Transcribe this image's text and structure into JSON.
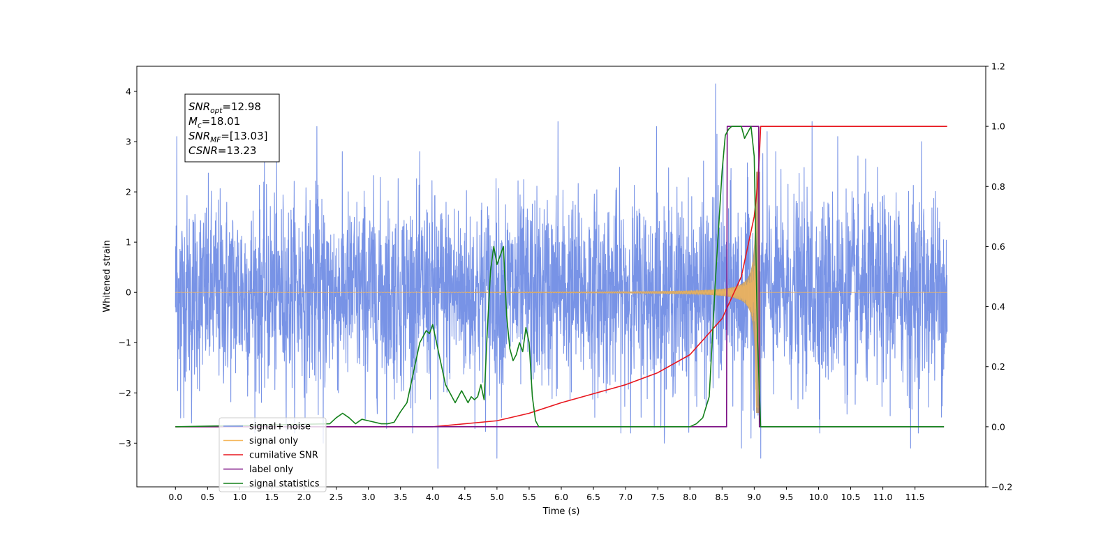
{
  "chart_data": {
    "type": "line",
    "title": "",
    "xlabel": "Time (s)",
    "ylabel": "Whitened strain",
    "xlim": [
      -0.6,
      12.6
    ],
    "ylim": [
      -3.87,
      4.5
    ],
    "y2lim": [
      -0.2,
      1.2
    ],
    "xticks": [
      0.0,
      0.5,
      1.0,
      1.5,
      2.0,
      2.5,
      3.0,
      3.5,
      4.0,
      4.5,
      5.0,
      5.5,
      6.0,
      6.5,
      7.0,
      7.5,
      8.0,
      8.5,
      9.0,
      9.5,
      10.0,
      10.5,
      11.0,
      11.5
    ],
    "xtick_labels": [
      "0.0",
      "0.5",
      "1.0",
      "1.5",
      "2.0",
      "2.5",
      "3.0",
      "3.5",
      "4.0",
      "4.5",
      "5.0",
      "5.5",
      "6.0",
      "6.5",
      "7.0",
      "7.5",
      "8.0",
      "8.5",
      "9.0",
      "9.5",
      "10.0",
      "10.5",
      "11.0",
      "11.5"
    ],
    "yticks": [
      -3,
      -2,
      -1,
      0,
      1,
      2,
      3,
      4
    ],
    "ytick_labels": [
      "−3",
      "−2",
      "−1",
      "0",
      "1",
      "2",
      "3",
      "4"
    ],
    "y2ticks": [
      -0.2,
      0.0,
      0.2,
      0.4,
      0.6,
      0.8,
      1.0,
      1.2
    ],
    "y2tick_labels": [
      "−0.2",
      "0.0",
      "0.2",
      "0.4",
      "0.6",
      "0.8",
      "1.0",
      "1.2"
    ],
    "grid": false,
    "legend_placement": "lower-left",
    "annotation": {
      "lines": [
        {
          "main": "SNR",
          "sub": "opt",
          "rest": "=12.98"
        },
        {
          "main": "M",
          "sub": "c",
          "rest": "=18.01"
        },
        {
          "main": "SNR",
          "sub": "MF",
          "rest": "=[13.03]"
        },
        {
          "main": "CSNR",
          "sub": "",
          "rest": "=13.23"
        }
      ]
    },
    "series": [
      {
        "name": "signal+ noise",
        "axis": "left",
        "color": "#7893e6",
        "kind": "noise",
        "duration": 12.0,
        "std": 0.95,
        "peaks": [
          [
            0.02,
            3.1
          ],
          [
            0.08,
            -2.5
          ],
          [
            0.25,
            -2.6
          ],
          [
            2.2,
            3.3
          ],
          [
            2.3,
            -3.0
          ],
          [
            4.08,
            -3.5
          ],
          [
            5.0,
            -3.3
          ],
          [
            5.95,
            3.4
          ],
          [
            7.48,
            3.3
          ],
          [
            7.6,
            -3.0
          ],
          [
            8.4,
            4.15
          ],
          [
            8.42,
            3.15
          ],
          [
            8.8,
            -3.1
          ],
          [
            8.95,
            -2.9
          ],
          [
            9.1,
            -3.3
          ],
          [
            9.2,
            3.2
          ],
          [
            9.9,
            3.4
          ],
          [
            10.3,
            3.1
          ],
          [
            11.43,
            -3.1
          ],
          [
            11.6,
            3.0
          ]
        ]
      },
      {
        "name": "signal only",
        "axis": "left",
        "color": "#f5b75c",
        "kind": "chirp",
        "merger_time": 9.05,
        "peak_amplitude": 2.4,
        "fill_color": "#b89c74"
      },
      {
        "name": "cumilative SNR",
        "axis": "right",
        "color": "#e8161e",
        "x": [
          0.0,
          4.0,
          5.0,
          5.5,
          6.0,
          6.5,
          7.0,
          7.5,
          8.0,
          8.5,
          8.8,
          9.0,
          9.05,
          9.08,
          9.1,
          12.0
        ],
        "y": [
          0.0,
          0.0,
          0.02,
          0.045,
          0.08,
          0.11,
          0.14,
          0.18,
          0.24,
          0.36,
          0.5,
          0.7,
          0.8,
          0.9,
          1.0,
          1.0
        ]
      },
      {
        "name": "label only",
        "axis": "right",
        "color": "#7d1085",
        "x": [
          0.0,
          8.57,
          8.58,
          9.07,
          9.08,
          11.95
        ],
        "y": [
          0.0,
          0.0,
          1.0,
          1.0,
          0.0,
          0.0
        ]
      },
      {
        "name": "signal statistics",
        "axis": "right",
        "color": "#13801a",
        "x": [
          0.0,
          2.4,
          2.5,
          2.6,
          2.7,
          2.8,
          2.9,
          3.0,
          3.1,
          3.2,
          3.3,
          3.4,
          3.5,
          3.6,
          3.7,
          3.8,
          3.85,
          3.9,
          3.95,
          4.0,
          4.05,
          4.1,
          4.15,
          4.2,
          4.25,
          4.3,
          4.35,
          4.4,
          4.45,
          4.5,
          4.55,
          4.6,
          4.65,
          4.7,
          4.75,
          4.8,
          4.85,
          4.9,
          4.95,
          5.0,
          5.05,
          5.1,
          5.15,
          5.2,
          5.25,
          5.3,
          5.35,
          5.4,
          5.45,
          5.5,
          5.55,
          5.6,
          5.65,
          5.7,
          5.75,
          5.8,
          5.85,
          5.9,
          6.0,
          6.5,
          7.0,
          7.5,
          8.0,
          8.1,
          8.2,
          8.3,
          8.4,
          8.5,
          8.55,
          8.6,
          8.65,
          8.7,
          8.75,
          8.8,
          8.85,
          8.9,
          8.95,
          9.0,
          9.05,
          9.1,
          9.15,
          11.95
        ],
        "y": [
          0.0,
          0.01,
          0.03,
          0.045,
          0.03,
          0.01,
          0.025,
          0.02,
          0.015,
          0.01,
          0.01,
          0.015,
          0.05,
          0.08,
          0.18,
          0.28,
          0.3,
          0.32,
          0.31,
          0.34,
          0.29,
          0.24,
          0.19,
          0.14,
          0.12,
          0.1,
          0.08,
          0.1,
          0.12,
          0.1,
          0.08,
          0.1,
          0.09,
          0.1,
          0.14,
          0.09,
          0.32,
          0.52,
          0.6,
          0.54,
          0.57,
          0.6,
          0.37,
          0.26,
          0.22,
          0.24,
          0.28,
          0.25,
          0.33,
          0.28,
          0.1,
          0.02,
          0.0,
          0.0,
          0.0,
          0.0,
          0.0,
          0.0,
          0.0,
          0.0,
          0.0,
          0.0,
          0.0,
          0.01,
          0.03,
          0.1,
          0.5,
          0.85,
          0.97,
          0.99,
          1.0,
          1.0,
          1.0,
          1.0,
          0.96,
          0.98,
          1.0,
          0.9,
          0.3,
          0.0,
          0.0,
          0.0
        ]
      }
    ]
  }
}
